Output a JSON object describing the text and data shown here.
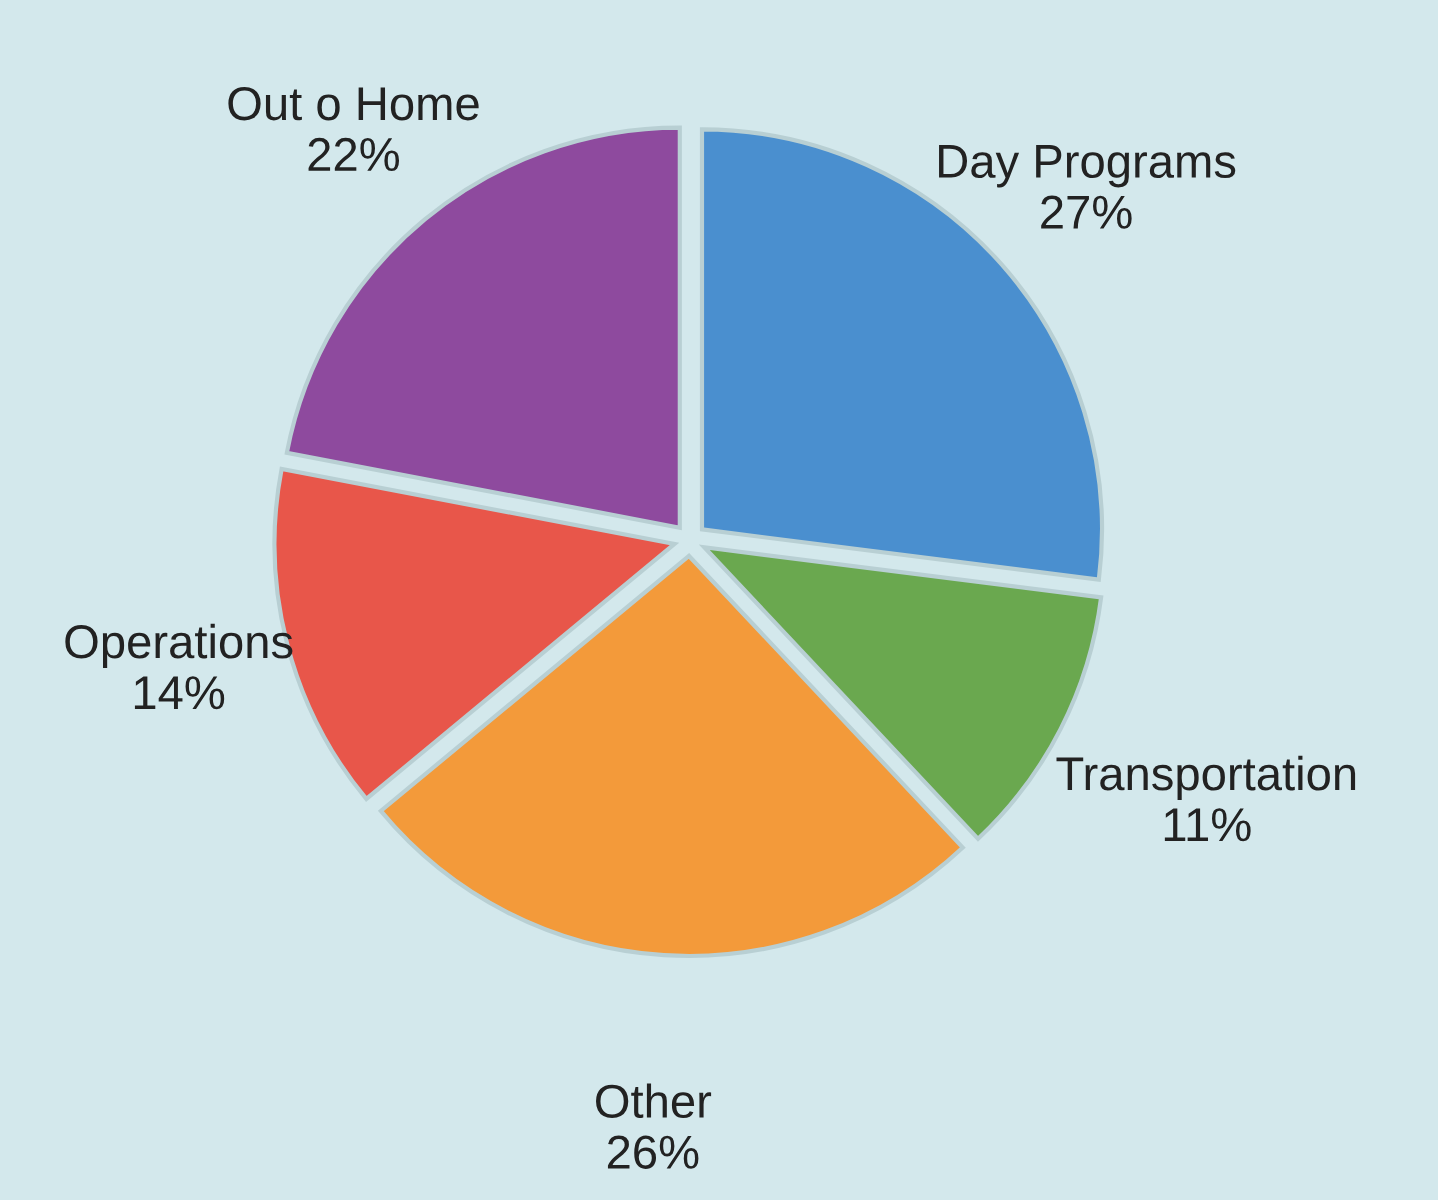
{
  "chart_data": {
    "type": "pie",
    "categories": [
      "Day Programs",
      "Transportation",
      "Other",
      "Operations",
      "Out o Home"
    ],
    "values": [
      27,
      11,
      26,
      14,
      22
    ],
    "value_labels": [
      "27%",
      "11%",
      "26%",
      "14%",
      "22%"
    ],
    "colors": [
      "#4a8fcf",
      "#6aa84f",
      "#f39a3a",
      "#e8564a",
      "#8e4a9e"
    ]
  }
}
